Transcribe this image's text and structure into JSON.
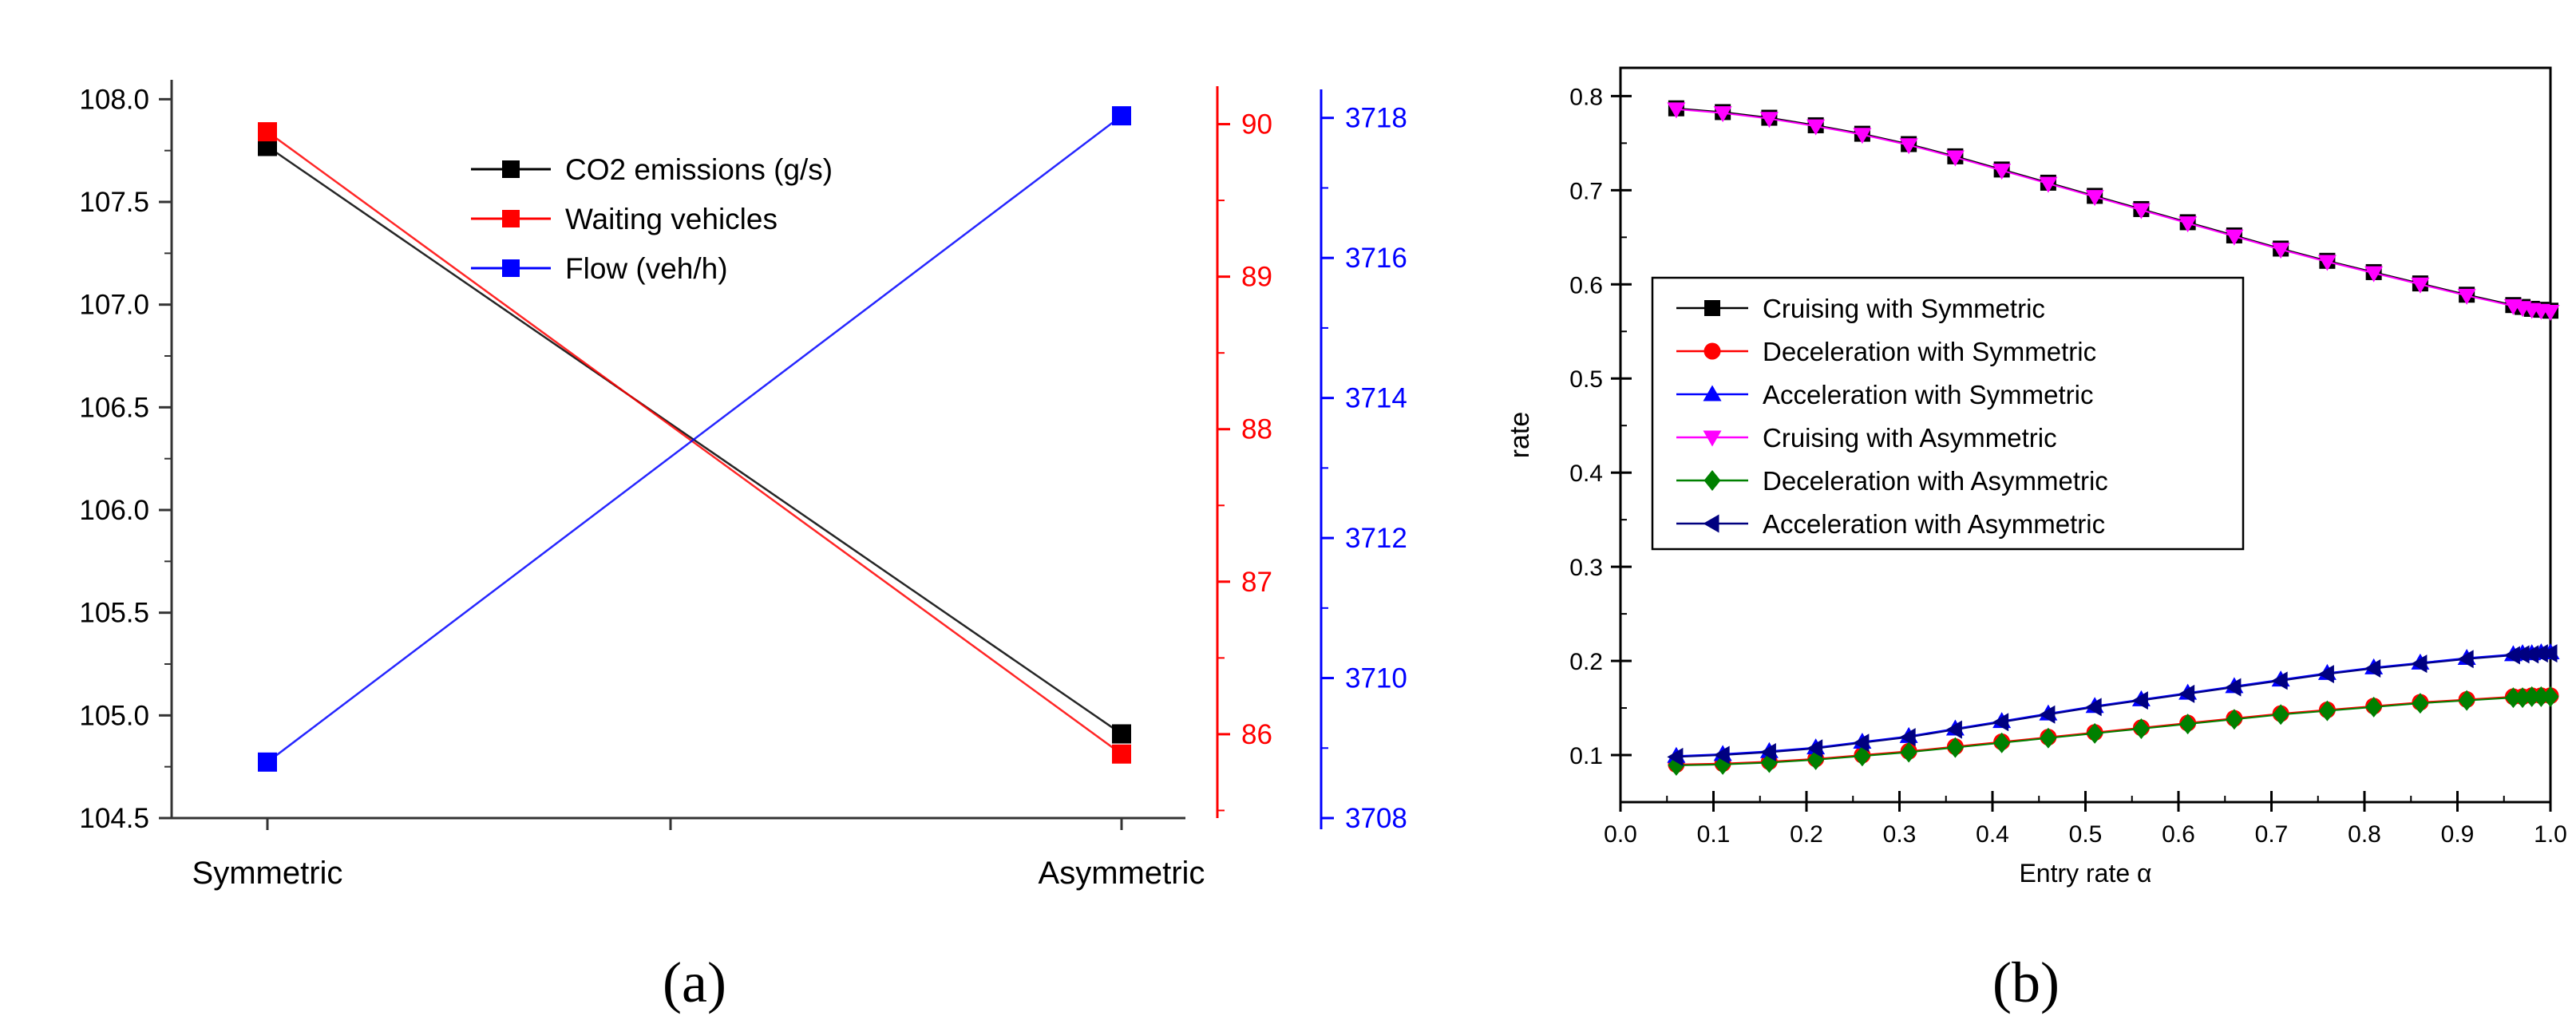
{
  "figure": {
    "captions": [
      "(a)",
      "(b)"
    ]
  },
  "chart_data": [
    {
      "id": "a",
      "type": "line",
      "title": "",
      "categories": [
        "Symmetric",
        "Asymmetric"
      ],
      "axes": [
        {
          "id": "y1",
          "side": "left",
          "range": [
            104.5,
            108.25
          ],
          "ticks": [
            "104.5",
            "105.0",
            "105.5",
            "106.0",
            "106.5",
            "107.0",
            "107.5",
            "108.0"
          ],
          "color": "#000000"
        },
        {
          "id": "y2",
          "side": "right",
          "range": [
            85.45,
            90.5
          ],
          "ticks": [
            "86",
            "87",
            "88",
            "89",
            "90"
          ],
          "color": "#ff0000"
        },
        {
          "id": "y3",
          "side": "right-outer",
          "range": [
            3708.0,
            3719.0
          ],
          "ticks": [
            "3708",
            "3710",
            "3712",
            "3714",
            "3716",
            "3718"
          ],
          "color": "#0000ff"
        }
      ],
      "series": [
        {
          "name": "CO2 emissions (g/s)",
          "axis": "y1",
          "color": "#000000",
          "values": [
            107.77,
            104.91
          ]
        },
        {
          "name": "Waiting vehicles",
          "axis": "y2",
          "color": "#ff0000",
          "values": [
            89.95,
            85.87
          ]
        },
        {
          "name": "Flow (veh/h)",
          "axis": "y3",
          "color": "#0000ff",
          "values": [
            3708.8,
            3718.03
          ]
        }
      ],
      "legend": "top-center"
    },
    {
      "id": "b",
      "type": "line",
      "title": "",
      "xlabel": "Entry rate α",
      "ylabel": "rate",
      "xlim": [
        0.0,
        1.0
      ],
      "ylim": [
        0.05,
        0.83
      ],
      "xticks": [
        "0.0",
        "0.1",
        "0.2",
        "0.3",
        "0.4",
        "0.5",
        "0.6",
        "0.7",
        "0.8",
        "0.9",
        "1.0"
      ],
      "yticks": [
        "0.1",
        "0.2",
        "0.3",
        "0.4",
        "0.5",
        "0.6",
        "0.7",
        "0.8"
      ],
      "x": [
        0.06,
        0.11,
        0.16,
        0.21,
        0.26,
        0.31,
        0.36,
        0.41,
        0.46,
        0.51,
        0.56,
        0.61,
        0.66,
        0.71,
        0.76,
        0.81,
        0.86,
        0.91,
        0.96,
        0.97,
        0.98,
        0.99,
        1.0
      ],
      "series": [
        {
          "name": "Cruising with Symmetric",
          "color": "#000000",
          "marker": "square",
          "values": [
            0.787,
            0.783,
            0.777,
            0.769,
            0.76,
            0.749,
            0.736,
            0.722,
            0.708,
            0.694,
            0.68,
            0.666,
            0.652,
            0.638,
            0.625,
            0.613,
            0.601,
            0.589,
            0.578,
            0.576,
            0.574,
            0.573,
            0.572
          ]
        },
        {
          "name": "Deceleration with Symmetric",
          "color": "#ff0000",
          "marker": "circle",
          "values": [
            0.09,
            0.091,
            0.093,
            0.096,
            0.1,
            0.104,
            0.109,
            0.114,
            0.119,
            0.124,
            0.129,
            0.134,
            0.139,
            0.144,
            0.148,
            0.152,
            0.156,
            0.159,
            0.162,
            0.162,
            0.163,
            0.163,
            0.163
          ]
        },
        {
          "name": "Acceleration with Symmetric",
          "color": "#0000ff",
          "marker": "triangle-up",
          "values": [
            0.099,
            0.101,
            0.104,
            0.108,
            0.114,
            0.12,
            0.128,
            0.136,
            0.144,
            0.152,
            0.159,
            0.166,
            0.173,
            0.18,
            0.187,
            0.193,
            0.198,
            0.203,
            0.207,
            0.208,
            0.208,
            0.209,
            0.209
          ]
        },
        {
          "name": "Cruising with Asymmetric",
          "color": "#ff00ff",
          "marker": "triangle-down",
          "values": [
            0.786,
            0.782,
            0.776,
            0.768,
            0.759,
            0.748,
            0.735,
            0.721,
            0.707,
            0.693,
            0.679,
            0.665,
            0.651,
            0.637,
            0.624,
            0.612,
            0.6,
            0.588,
            0.577,
            0.575,
            0.573,
            0.572,
            0.571
          ]
        },
        {
          "name": "Deceleration with Asymmetric",
          "color": "#008000",
          "marker": "diamond",
          "values": [
            0.089,
            0.09,
            0.092,
            0.095,
            0.099,
            0.103,
            0.108,
            0.113,
            0.118,
            0.123,
            0.128,
            0.133,
            0.138,
            0.143,
            0.147,
            0.151,
            0.155,
            0.158,
            0.161,
            0.161,
            0.162,
            0.162,
            0.162
          ]
        },
        {
          "name": "Acceleration with Asymmetric",
          "color": "#000080",
          "marker": "triangle-left",
          "values": [
            0.098,
            0.1,
            0.103,
            0.107,
            0.113,
            0.119,
            0.127,
            0.135,
            0.143,
            0.151,
            0.158,
            0.165,
            0.172,
            0.179,
            0.186,
            0.192,
            0.197,
            0.202,
            0.206,
            0.207,
            0.207,
            0.208,
            0.208
          ]
        }
      ],
      "legend": "middle-left"
    }
  ]
}
